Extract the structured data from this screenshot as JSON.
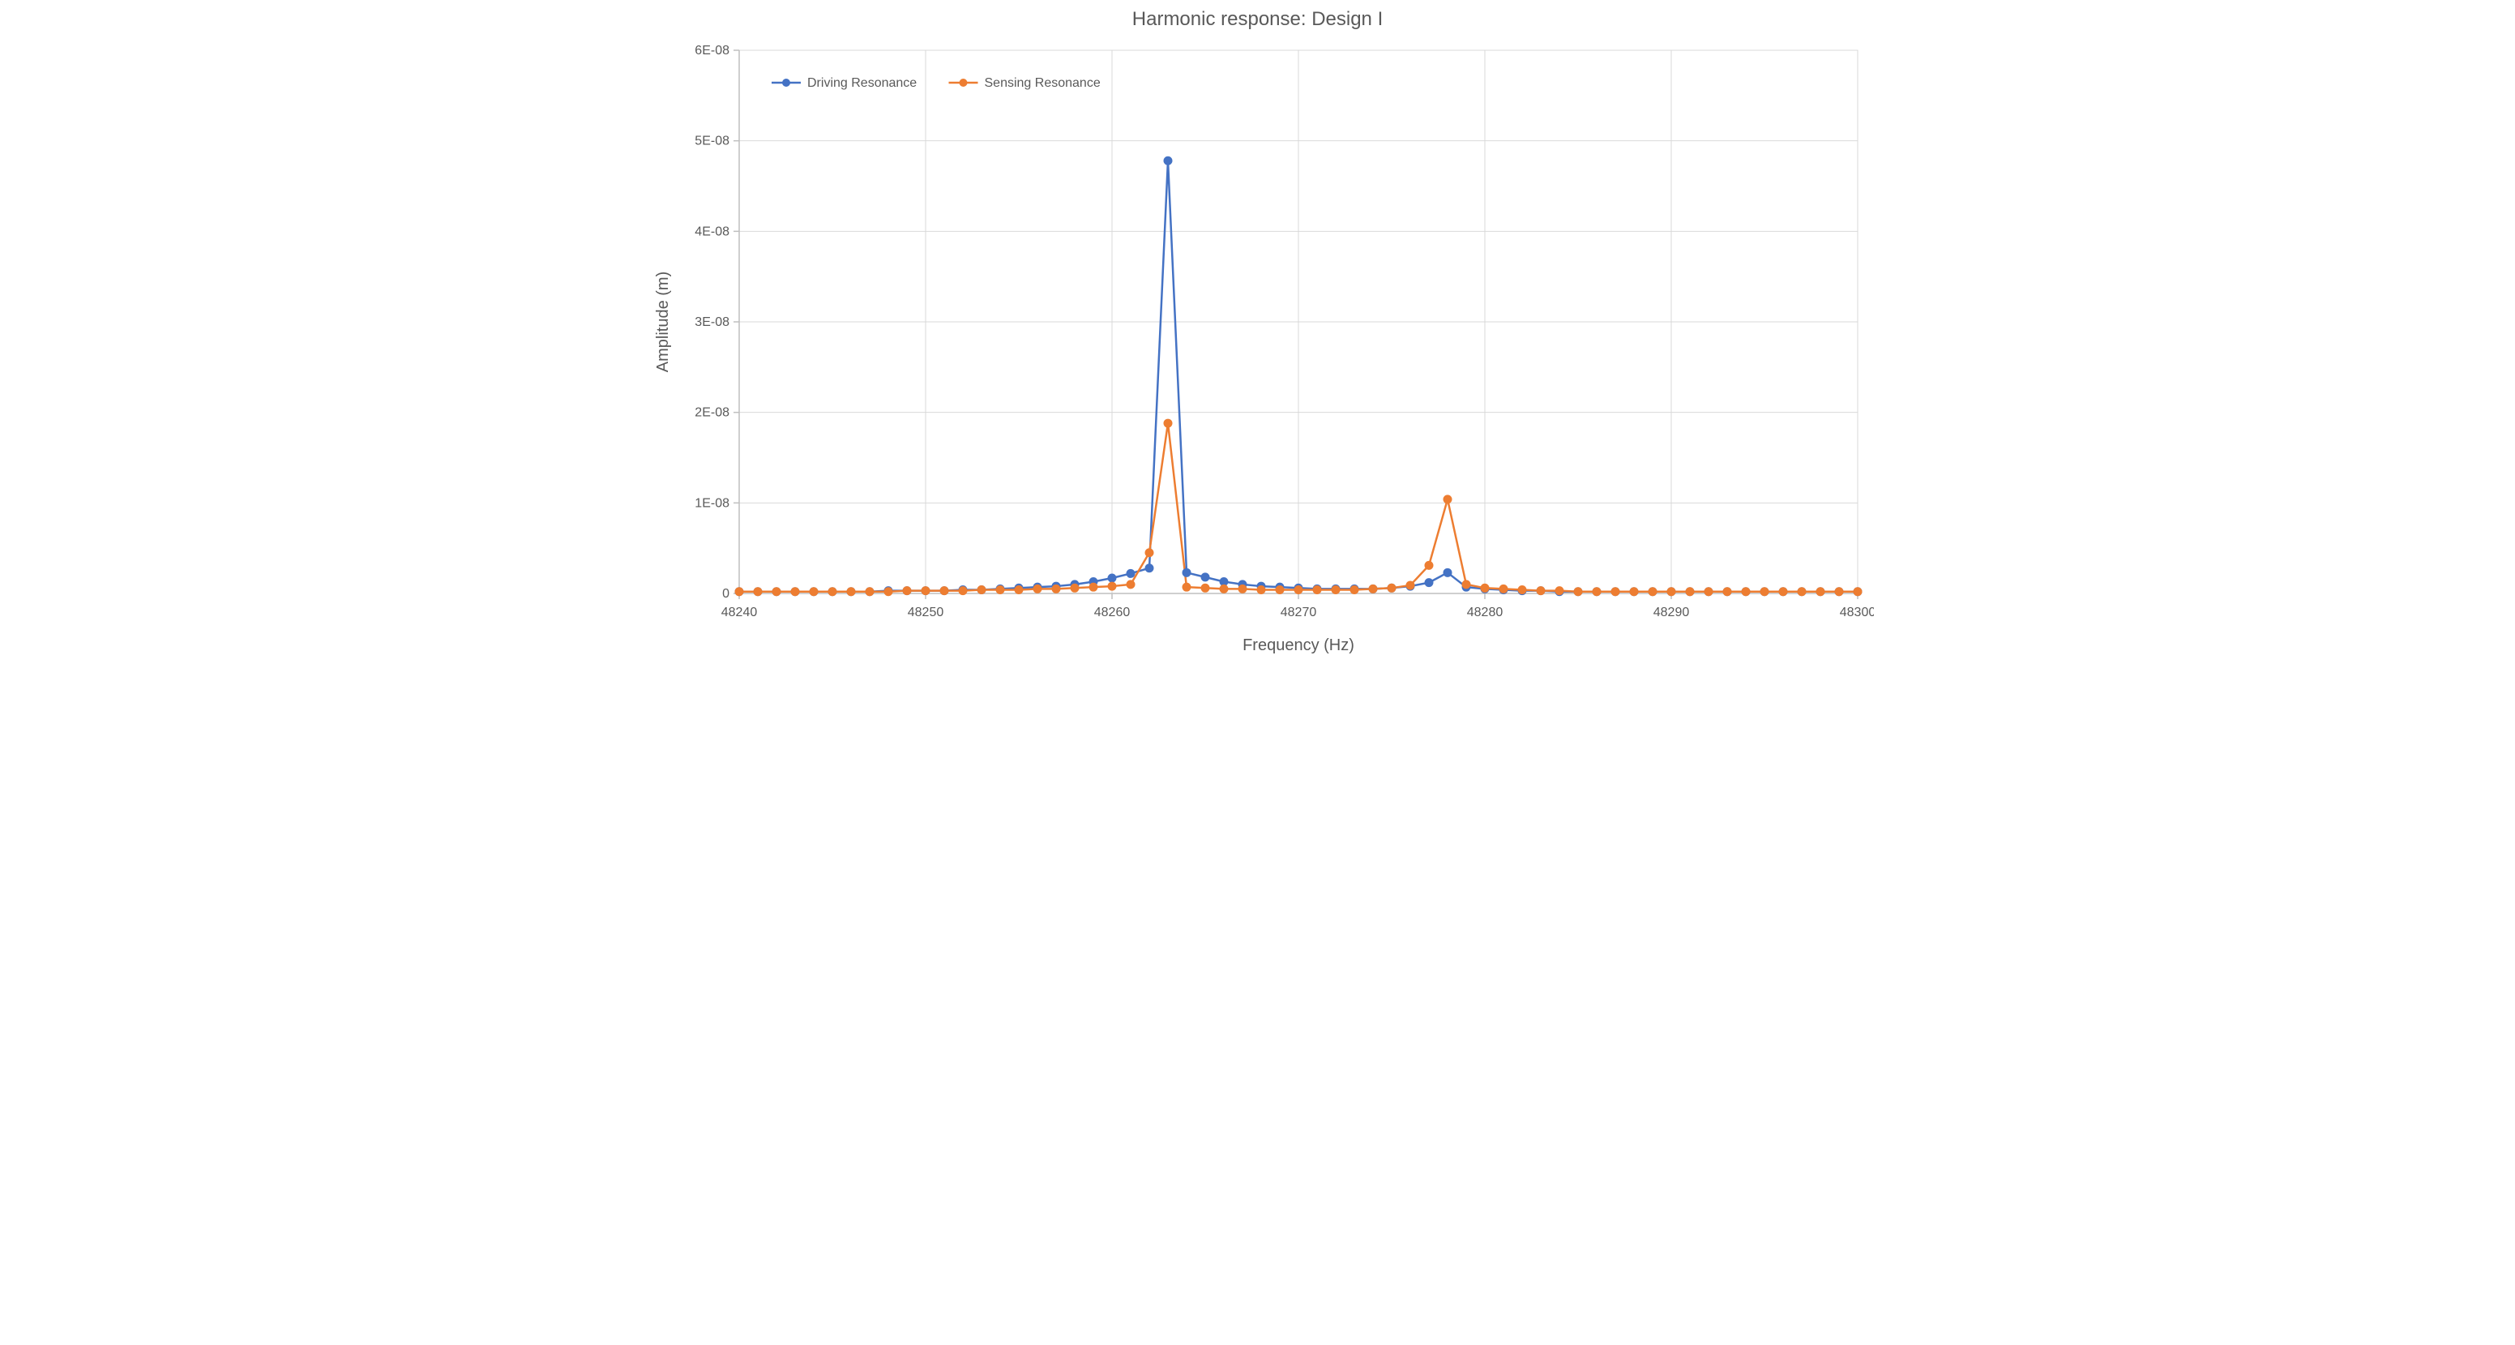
{
  "chart": {
    "type": "line",
    "title": "Harmonic response: Design I",
    "title_fontsize": 24,
    "title_color": "#595959",
    "xlabel": "Frequency (Hz)",
    "ylabel": "Amplitude (m)",
    "label_fontsize": 20,
    "tick_fontsize": 16,
    "background_color": "#ffffff",
    "plot_border_color": "#d9d9d9",
    "grid_color_major": "#d9d9d9",
    "axis_line_color": "#bfbfbf",
    "xlim": [
      48240,
      48300
    ],
    "ylim": [
      0,
      6e-08
    ],
    "xtick_step": 10,
    "xticks": [
      48240,
      48250,
      48260,
      48270,
      48280,
      48290,
      48300
    ],
    "ytick_step": 1e-08,
    "yticks": [
      0,
      1e-08,
      2e-08,
      3e-08,
      4e-08,
      5e-08,
      6e-08
    ],
    "ytick_labels": [
      "0",
      "1E-08",
      "2E-08",
      "3E-08",
      "4E-08",
      "5E-08",
      "6E-08"
    ],
    "line_width": 2.5,
    "marker_style": "circle",
    "marker_radius": 5,
    "legend": {
      "position": "top-left-inside",
      "items": [
        "Driving Resonance",
        "Sensing Resonance"
      ]
    },
    "series": [
      {
        "name": "Driving Resonance",
        "color": "#4472c4",
        "x": [
          48240,
          48241,
          48242,
          48243,
          48244,
          48245,
          48246,
          48247,
          48248,
          48249,
          48250,
          48251,
          48252,
          48253,
          48254,
          48255,
          48256,
          48257,
          48258,
          48259,
          48260,
          48261,
          48262,
          48263,
          48264,
          48265,
          48266,
          48267,
          48268,
          48269,
          48270,
          48271,
          48272,
          48273,
          48274,
          48275,
          48276,
          48277,
          48278,
          48279,
          48280,
          48281,
          48282,
          48283,
          48284,
          48285,
          48286,
          48287,
          48288,
          48289,
          48290,
          48291,
          48292,
          48293,
          48294,
          48295,
          48296,
          48297,
          48298,
          48299,
          48300
        ],
        "y": [
          2e-10,
          2e-10,
          2e-10,
          2e-10,
          2e-10,
          2e-10,
          2e-10,
          2e-10,
          3e-10,
          3e-10,
          3e-10,
          3e-10,
          4e-10,
          4e-10,
          5e-10,
          6e-10,
          7e-10,
          8e-10,
          1e-09,
          1.3e-09,
          1.7e-09,
          2.2e-09,
          2.8e-09,
          4.78e-08,
          2.3e-09,
          1.8e-09,
          1.3e-09,
          1e-09,
          8e-10,
          7e-10,
          6e-10,
          5e-10,
          5e-10,
          5e-10,
          5e-10,
          6e-10,
          8e-10,
          1.2e-09,
          2.3e-09,
          7e-10,
          5e-10,
          4e-10,
          3e-10,
          3e-10,
          2e-10,
          2e-10,
          2e-10,
          2e-10,
          2e-10,
          2e-10,
          2e-10,
          2e-10,
          2e-10,
          2e-10,
          2e-10,
          2e-10,
          2e-10,
          2e-10,
          2e-10,
          2e-10,
          2e-10
        ]
      },
      {
        "name": "Sensing Resonance",
        "color": "#ed7d31",
        "x": [
          48240,
          48241,
          48242,
          48243,
          48244,
          48245,
          48246,
          48247,
          48248,
          48249,
          48250,
          48251,
          48252,
          48253,
          48254,
          48255,
          48256,
          48257,
          48258,
          48259,
          48260,
          48261,
          48262,
          48263,
          48264,
          48265,
          48266,
          48267,
          48268,
          48269,
          48270,
          48271,
          48272,
          48273,
          48274,
          48275,
          48276,
          48277,
          48278,
          48279,
          48280,
          48281,
          48282,
          48283,
          48284,
          48285,
          48286,
          48287,
          48288,
          48289,
          48290,
          48291,
          48292,
          48293,
          48294,
          48295,
          48296,
          48297,
          48298,
          48299,
          48300
        ],
        "y": [
          2e-10,
          2e-10,
          2e-10,
          2e-10,
          2e-10,
          2e-10,
          2e-10,
          2e-10,
          2e-10,
          3e-10,
          3e-10,
          3e-10,
          3e-10,
          4e-10,
          4e-10,
          4e-10,
          5e-10,
          5e-10,
          6e-10,
          7e-10,
          8e-10,
          1e-09,
          4.5e-09,
          1.88e-08,
          7e-10,
          6e-10,
          5e-10,
          5e-10,
          4e-10,
          4e-10,
          4e-10,
          4e-10,
          4e-10,
          4e-10,
          5e-10,
          6e-10,
          9e-10,
          3.1e-09,
          1.04e-08,
          1e-09,
          6e-10,
          5e-10,
          4e-10,
          3e-10,
          3e-10,
          2e-10,
          2e-10,
          2e-10,
          2e-10,
          2e-10,
          2e-10,
          2e-10,
          2e-10,
          2e-10,
          2e-10,
          2e-10,
          2e-10,
          2e-10,
          2e-10,
          2e-10,
          2e-10
        ]
      }
    ]
  }
}
